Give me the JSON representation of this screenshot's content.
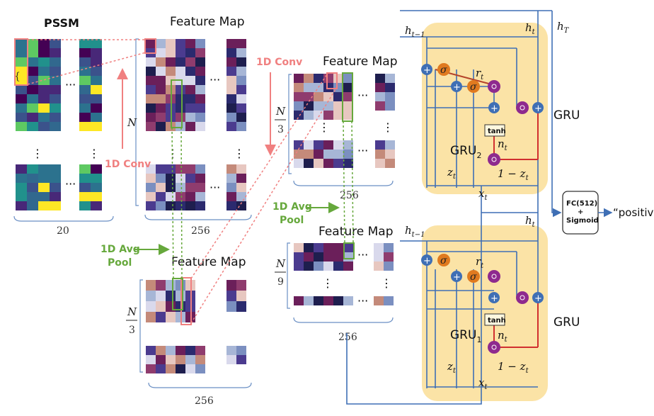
{
  "pssm": {
    "title": "PSSM",
    "width_label": "20"
  },
  "fmap1": {
    "title": "Feature Map",
    "height_label": "N",
    "width_label": "256"
  },
  "fmap2": {
    "title": "Feature Map",
    "height_num": "N",
    "height_den": "3",
    "width_label": "256"
  },
  "fmap3": {
    "title": "Feature Map",
    "height_num": "N",
    "height_den": "3",
    "width_label": "256"
  },
  "fmap4": {
    "title": "Feature Map",
    "height_num": "N",
    "height_den": "9",
    "width_label": "256"
  },
  "ops": {
    "conv1": "1D Conv",
    "conv2": "1D Conv",
    "pool1_a": "1D Avg",
    "pool1_b": "Pool",
    "pool2_a": "1D Avg",
    "pool2_b": "Pool"
  },
  "gru_top": {
    "name": "GRU",
    "sub": "2",
    "label": "GRU",
    "h_prev": "h",
    "h_prev_sub": "t−1",
    "h_t": "h",
    "h_t_sub": "t",
    "x": "x",
    "x_sub": "t",
    "r": "r",
    "r_sub": "t",
    "n": "n",
    "n_sub": "t",
    "z": "z",
    "z_sub": "t",
    "one_minus_z": "1 − z",
    "one_minus_z_sub": "t",
    "tanh": "tanh",
    "sigma": "σ",
    "hT": "h",
    "hT_sub": "T"
  },
  "gru_bot": {
    "name": "GRU",
    "sub": "1",
    "label": "GRU",
    "h_prev": "h",
    "h_prev_sub": "t−1",
    "h_t": "h",
    "h_t_sub": "t",
    "x": "x",
    "x_sub": "t",
    "r": "r",
    "r_sub": "t",
    "n": "n",
    "n_sub": "t",
    "z": "z",
    "z_sub": "t",
    "one_minus_z": "1 − z",
    "one_minus_z_sub": "t",
    "tanh": "tanh",
    "sigma": "σ"
  },
  "fc": {
    "line1": "FC(512)",
    "line2": "+",
    "line3": "Sigmoid"
  },
  "output": {
    "text": "“positive?"
  },
  "colors": {
    "conv": "#f08080",
    "pool": "#66a83c",
    "gru_bg": "#fbe3a6",
    "line": "#3f6fb5",
    "gate": "#e07a1f",
    "mult": "#8e2a8e"
  }
}
